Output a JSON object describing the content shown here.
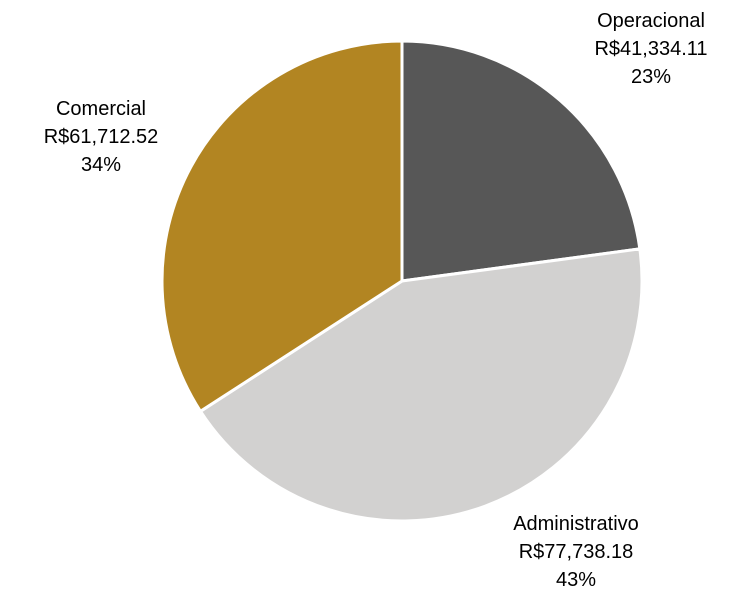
{
  "chart_data": {
    "type": "pie",
    "title": "",
    "slices": [
      {
        "category": "Operacional",
        "value": 41334.11,
        "value_label": "R$41,334.11",
        "percent_label": "23%",
        "color": "#575757"
      },
      {
        "category": "Administrativo",
        "value": 77738.18,
        "value_label": "R$77,738.18",
        "percent_label": "43%",
        "color": "#d2d1d0"
      },
      {
        "category": "Comercial",
        "value": 61712.52,
        "value_label": "R$61,712.52",
        "percent_label": "34%",
        "color": "#b28522"
      }
    ],
    "start_angle": "12 o'clock",
    "direction": "clockwise",
    "legend": "none",
    "data_labels": "outside"
  }
}
